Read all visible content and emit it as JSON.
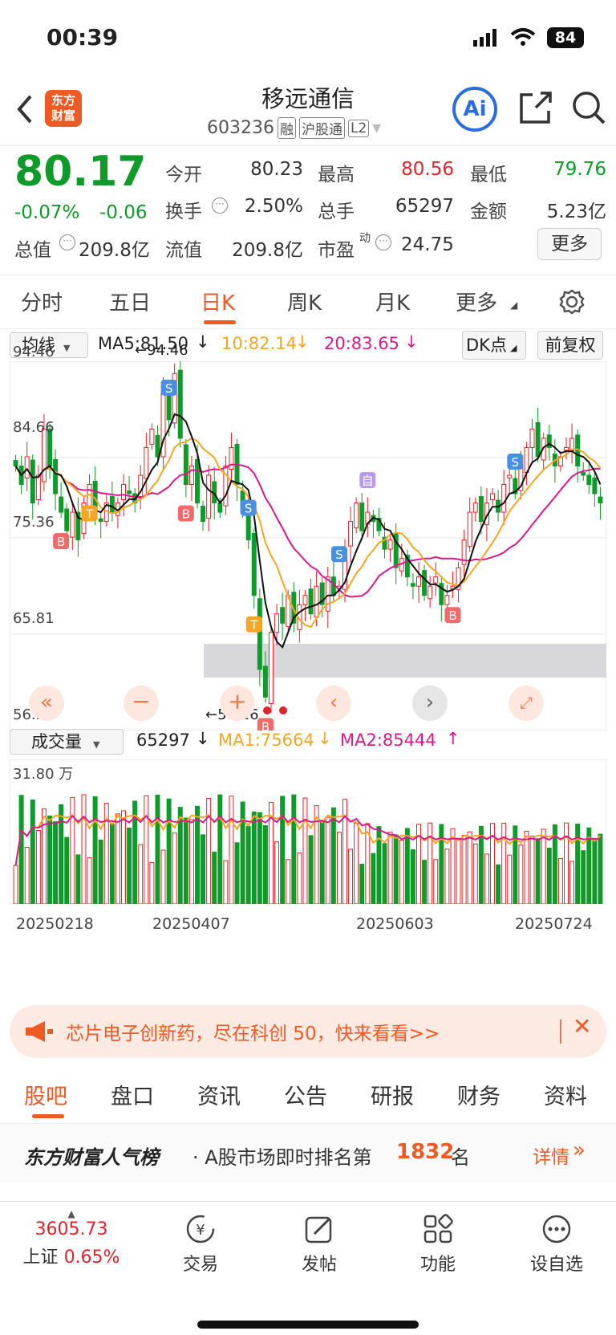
{
  "status": {
    "time": "00:39",
    "battery": "84"
  },
  "header": {
    "back_icon": "chevron-left-icon",
    "logo_text_1": "东方",
    "logo_text_2": "财富",
    "title": "移远通信",
    "code": "603236",
    "tag_rong": "融",
    "tag_hgt": "沪股通",
    "tag_l2": "L2",
    "ai_label": "Ai"
  },
  "quote": {
    "price": "80.17",
    "change_pct": "-0.07%",
    "change": "-0.06",
    "open_label": "今开",
    "open": "80.23",
    "high_label": "最高",
    "high": "80.56",
    "low_label": "最低",
    "low": "79.76",
    "turnover_label": "换手",
    "turnover": "2.50%",
    "volume_label": "总手",
    "volume": "65297",
    "amount_label": "金额",
    "amount": "5.23亿",
    "mktcap_label": "总值",
    "mktcap": "209.8亿",
    "float_label": "流值",
    "float": "209.8亿",
    "pe_label": "市盈",
    "pe_sup": "动",
    "pe": "24.75",
    "more_label": "更多"
  },
  "tabs": [
    "分时",
    "五日",
    "日K",
    "周K",
    "月K",
    "更多"
  ],
  "active_tab": 2,
  "indicator": {
    "select": "均线",
    "ma5": "MA5:81.50",
    "ma10": "10:82.14",
    "ma20": "20:83.65",
    "dk": "DK点",
    "fq": "前复权"
  },
  "price_axis": {
    "top": "94.46",
    "mid1": "84.66",
    "mid2": "75.36",
    "mid3": "65.81",
    "bottom": "56.26",
    "high_mark": "94.46",
    "low_mark": "56.26"
  },
  "volume_bar": {
    "select": "成交量",
    "vol": "65297",
    "ma1": "MA1:75664",
    "ma2": "MA2:85444",
    "max": "31.80 万"
  },
  "dates": [
    "20250218",
    "20250407",
    "20250603",
    "20250724"
  ],
  "chart_data": {
    "type": "candlestick",
    "ylim": [
      56.26,
      94.46
    ],
    "closes": [
      84,
      82,
      85,
      80,
      83,
      88,
      84,
      81,
      79,
      77,
      79,
      76,
      80,
      82,
      79,
      78,
      80,
      79,
      80,
      82,
      81,
      80,
      83,
      86,
      88,
      85,
      92,
      89,
      94,
      87,
      82,
      84,
      80,
      78,
      83,
      80,
      79,
      84,
      86,
      82,
      79,
      76,
      70,
      62,
      59,
      66,
      68,
      67,
      70,
      67,
      69,
      70,
      68,
      71,
      69,
      72,
      70,
      71,
      75,
      78,
      80,
      77,
      79,
      78,
      77,
      75,
      76,
      73,
      74,
      72,
      71,
      72,
      70,
      71,
      72,
      69,
      70,
      71,
      73,
      76,
      79,
      80,
      78,
      80,
      81,
      79,
      82,
      83,
      81,
      84,
      86,
      88,
      85,
      87,
      86,
      84,
      85,
      86,
      87,
      84,
      83,
      82,
      81,
      80
    ],
    "colors": {
      "up": "#e0242b",
      "down": "#0f9b2a",
      "ma5": "#111111",
      "ma10": "#f5a623",
      "ma20": "#d81b8a"
    },
    "signals": [
      "S",
      "B",
      "T",
      "自"
    ]
  },
  "ad": {
    "text": "芯片电子创新药，尽在科创 50，快来看看>>"
  },
  "subtabs": [
    "股吧",
    "盘口",
    "资讯",
    "公告",
    "研报",
    "财务",
    "资料"
  ],
  "rank": {
    "brand": "东方财富人气榜",
    "text": "· A股市场即时排名第",
    "num": "1832",
    "suffix": "名",
    "link": "详情"
  },
  "bottomnav": {
    "index_value": "3605.73",
    "index_name": "上证",
    "index_pct": "0.65%",
    "items": [
      "交易",
      "发帖",
      "功能",
      "设自选"
    ]
  }
}
